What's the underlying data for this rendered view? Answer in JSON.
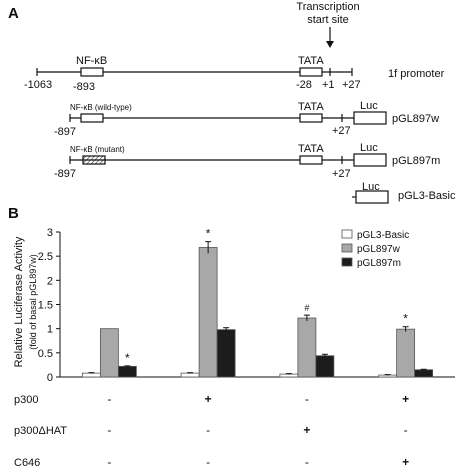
{
  "panel_a": {
    "label": "A",
    "tss_label_line1": "Transcription",
    "tss_label_line2": "start site",
    "promoter": {
      "name": "1f promoter",
      "nfkb": "NF-κB",
      "tata": "TATA",
      "pos_left": "-1063",
      "pos_nfkb": "-893",
      "pos_tata": "-28",
      "pos_plus1": "+1",
      "pos_plus27": "+27"
    },
    "construct_w": {
      "name": "pGL897w",
      "nfkb": "NF-κB (wild-type)",
      "tata": "TATA",
      "luc": "Luc",
      "pos_left": "-897",
      "pos_right": "+27"
    },
    "construct_m": {
      "name": "pGL897m",
      "nfkb": "NF-κB (mutant)",
      "tata": "TATA",
      "luc": "Luc",
      "pos_left": "-897",
      "pos_right": "+27"
    },
    "construct_basic": {
      "name": "pGL3-Basic",
      "luc": "Luc"
    }
  },
  "panel_b": {
    "label": "B",
    "treatments": [
      {
        "name": "p300",
        "values": [
          "-",
          "+",
          "-",
          "+"
        ]
      },
      {
        "name": "p300ΔHAT",
        "values": [
          "-",
          "-",
          "+",
          "-"
        ]
      },
      {
        "name": "C646",
        "values": [
          "-",
          "-",
          "-",
          "+"
        ]
      }
    ]
  },
  "chart_data": {
    "type": "bar",
    "ylabel": "Relative Luciferase Activity",
    "ylabel2": "(fold of basal pGL897w)",
    "ylim": [
      0,
      3
    ],
    "yticks": [
      "0",
      "0.5",
      "1",
      "1.5",
      "2",
      "2.5",
      "3"
    ],
    "legend_position": "top-right",
    "grid": false,
    "groups": 4,
    "series": [
      {
        "name": "pGL3-Basic",
        "color": "#ffffff",
        "values": [
          0.08,
          0.08,
          0.06,
          0.04
        ],
        "errors": [
          0.01,
          0.01,
          0.01,
          0.01
        ],
        "marks": [
          "",
          "",
          "",
          ""
        ]
      },
      {
        "name": "pGL897w",
        "color": "#a8a8a8",
        "values": [
          1.0,
          2.68,
          1.22,
          0.99
        ],
        "errors": [
          0.0,
          0.12,
          0.06,
          0.05
        ],
        "marks": [
          "",
          "*",
          "#",
          "*"
        ]
      },
      {
        "name": "pGL897m",
        "color": "#1c1c1c",
        "values": [
          0.22,
          0.98,
          0.44,
          0.15
        ],
        "errors": [
          0.01,
          0.04,
          0.03,
          0.01
        ],
        "marks": [
          "*",
          "",
          "",
          ""
        ]
      }
    ]
  }
}
